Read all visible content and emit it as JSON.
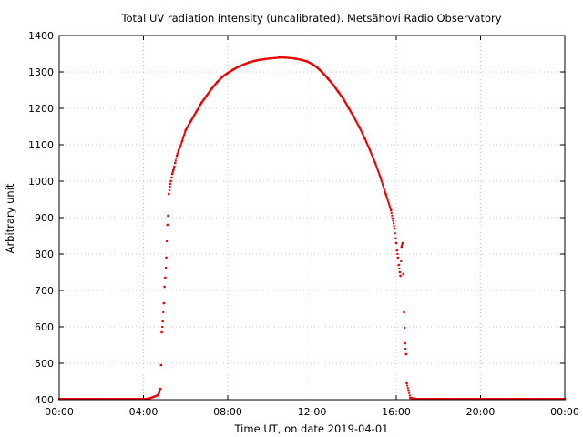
{
  "chart_data": {
    "type": "scatter",
    "title": "Total UV radiation intensity (uncalibrated). Metsähovi Radio Observatory",
    "xlabel": "Time UT, on date 2019-04-01",
    "ylabel": "Arbitrary unit",
    "xlim": [
      "00:00",
      "24:00"
    ],
    "ylim": [
      400,
      1400
    ],
    "x_ticks": [
      "00:00",
      "04:00",
      "08:00",
      "12:00",
      "16:00",
      "20:00",
      "00:00"
    ],
    "y_ticks": [
      400,
      500,
      600,
      700,
      800,
      900,
      1000,
      1100,
      1200,
      1300,
      1400
    ],
    "grid": true,
    "marker_color": "#ee0000",
    "series": [
      {
        "name": "",
        "x": [
          "00:00",
          "04:00",
          "04:15",
          "04:30",
          "04:40",
          "04:45",
          "04:48",
          "04:50",
          "04:52",
          "04:55",
          "04:58",
          "05:00",
          "05:02",
          "05:05",
          "05:08",
          "05:10",
          "05:12",
          "05:15",
          "05:18",
          "05:20",
          "05:22",
          "05:25",
          "05:28",
          "05:30",
          "05:35",
          "05:40",
          "05:45",
          "05:50",
          "06:00",
          "06:15",
          "06:30",
          "06:45",
          "07:00",
          "07:15",
          "07:30",
          "07:45",
          "08:00",
          "08:15",
          "08:30",
          "08:45",
          "09:00",
          "09:15",
          "09:30",
          "09:45",
          "10:00",
          "10:15",
          "10:30",
          "10:45",
          "11:00",
          "11:15",
          "11:30",
          "11:45",
          "12:00",
          "12:15",
          "12:30",
          "12:45",
          "13:00",
          "13:15",
          "13:30",
          "13:45",
          "14:00",
          "14:15",
          "14:30",
          "14:45",
          "15:00",
          "15:15",
          "15:30",
          "15:45",
          "15:55",
          "16:00",
          "16:02",
          "16:05",
          "16:07",
          "16:10",
          "16:12",
          "16:15",
          "16:18",
          "16:20",
          "16:22",
          "16:25",
          "16:28",
          "16:30",
          "16:35",
          "16:40",
          "17:00",
          "20:00",
          "24:00"
        ],
        "y": [
          402,
          402,
          403,
          408,
          412,
          420,
          430,
          495,
          585,
          615,
          665,
          710,
          735,
          790,
          880,
          905,
          965,
          985,
          1000,
          1010,
          1020,
          1030,
          1040,
          1050,
          1070,
          1085,
          1095,
          1110,
          1140,
          1165,
          1190,
          1215,
          1235,
          1255,
          1272,
          1287,
          1297,
          1306,
          1314,
          1320,
          1326,
          1330,
          1333,
          1335,
          1337,
          1338,
          1340,
          1339,
          1338,
          1336,
          1333,
          1329,
          1322,
          1312,
          1298,
          1282,
          1265,
          1245,
          1225,
          1200,
          1175,
          1148,
          1118,
          1085,
          1050,
          1010,
          965,
          920,
          870,
          830,
          810,
          790,
          770,
          750,
          740,
          820,
          830,
          745,
          640,
          555,
          525,
          445,
          425,
          405,
          402,
          402,
          402
        ]
      }
    ]
  }
}
